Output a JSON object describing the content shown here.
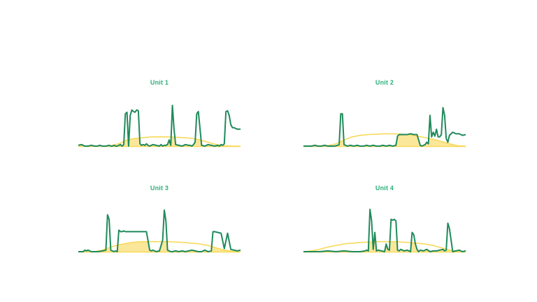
{
  "colors": {
    "actual": "#1f8a5b",
    "baseline": "#f8d95a",
    "baseline_fill": "#fbe79a",
    "title": "#2bb07a"
  },
  "chart_data": [
    {
      "type": "area",
      "title": "Unit 1",
      "xlim": [
        0,
        100
      ],
      "ylim": [
        0,
        60
      ],
      "series": [
        {
          "role": "actual",
          "x": [
            0,
            2,
            4,
            6,
            8,
            10,
            12,
            13,
            15,
            17,
            19,
            20,
            21,
            22,
            23,
            24,
            25,
            26,
            27,
            28,
            29,
            30,
            31,
            32,
            33,
            34,
            35,
            36,
            37,
            38,
            39,
            40,
            41,
            42,
            43,
            44,
            46,
            48,
            50,
            51,
            52,
            53,
            54,
            55,
            56,
            57,
            58,
            59,
            60,
            62,
            64,
            66,
            68,
            69,
            70,
            71,
            72,
            73,
            74,
            76,
            78,
            80,
            82,
            84,
            86,
            87,
            88,
            89,
            90,
            91,
            92,
            93,
            94,
            95,
            96,
            98,
            100
          ],
          "y": [
            1,
            2,
            0,
            0,
            1,
            0,
            0,
            1,
            0,
            0,
            1,
            0,
            0,
            1,
            0,
            0,
            1,
            2,
            0,
            2,
            42,
            44,
            0,
            40,
            47,
            45,
            44,
            47,
            46,
            3,
            1,
            2,
            1,
            3,
            1,
            0,
            2,
            1,
            0,
            2,
            0,
            1,
            1,
            2,
            8,
            1,
            53,
            22,
            2,
            1,
            0,
            2,
            1,
            1,
            0,
            2,
            5,
            42,
            45,
            1,
            0,
            2,
            1,
            0,
            1,
            0,
            2,
            1,
            3,
            45,
            46,
            40,
            28,
            24,
            24,
            22,
            22
          ]
        },
        {
          "role": "baseline",
          "x": [
            0,
            10,
            15,
            20,
            25,
            30,
            35,
            40,
            45,
            50,
            55,
            60,
            65,
            70,
            75,
            80,
            85,
            90,
            95,
            100
          ],
          "y": [
            0,
            0,
            0,
            0.5,
            3,
            8,
            10,
            11,
            12,
            12,
            12,
            11.5,
            11,
            10,
            8,
            5,
            2,
            0.5,
            0,
            0
          ]
        }
      ]
    },
    {
      "type": "area",
      "title": "Unit 2",
      "xlim": [
        0,
        100
      ],
      "ylim": [
        0,
        60
      ],
      "series": [
        {
          "role": "actual",
          "x": [
            0,
            5,
            7,
            9,
            11,
            13,
            15,
            17,
            19,
            21,
            22,
            23,
            24,
            25,
            26,
            27,
            29,
            31,
            33,
            35,
            37,
            39,
            41,
            43,
            45,
            47,
            49,
            51,
            53,
            55,
            57,
            58,
            59,
            60,
            62,
            64,
            66,
            68,
            70,
            72,
            73,
            74,
            75,
            76,
            77,
            78,
            79,
            80,
            81,
            82,
            83,
            84,
            85,
            86,
            87,
            88,
            89,
            90,
            91,
            92,
            94,
            96,
            98,
            100
          ],
          "y": [
            0,
            0,
            1,
            0,
            0,
            1,
            0,
            0,
            0,
            1,
            2,
            42,
            42,
            2,
            1,
            0,
            1,
            0,
            1,
            0,
            0,
            1,
            0,
            1,
            0,
            0,
            1,
            0,
            1,
            0,
            1,
            13,
            15,
            15,
            15,
            15,
            16,
            15,
            15,
            1,
            0,
            1,
            2,
            5,
            3,
            40,
            12,
            18,
            13,
            22,
            12,
            12,
            15,
            50,
            40,
            10,
            5,
            14,
            16,
            18,
            16,
            16,
            14,
            15
          ]
        },
        {
          "role": "baseline",
          "x": [
            0,
            10,
            15,
            20,
            25,
            30,
            35,
            40,
            45,
            50,
            55,
            60,
            65,
            70,
            75,
            80,
            85,
            90,
            95,
            100
          ],
          "y": [
            0,
            0,
            0.5,
            3,
            8,
            12,
            14,
            15,
            15.5,
            16,
            16,
            15.5,
            15,
            13,
            11,
            9,
            6,
            3,
            0.5,
            0
          ]
        }
      ]
    },
    {
      "type": "area",
      "title": "Unit 3",
      "xlim": [
        0,
        100
      ],
      "ylim": [
        0,
        60
      ],
      "series": [
        {
          "role": "actual",
          "x": [
            0,
            3,
            4,
            5,
            6,
            7,
            8,
            10,
            12,
            15,
            17,
            18,
            19,
            20,
            21,
            22,
            23,
            24,
            25,
            26,
            27,
            28,
            29,
            30,
            32,
            34,
            36,
            38,
            40,
            42,
            44,
            45,
            46,
            47,
            48,
            50,
            52,
            53,
            54,
            55,
            56,
            57,
            58,
            60,
            62,
            64,
            66,
            68,
            70,
            72,
            74,
            76,
            77,
            78,
            80,
            82,
            83,
            84,
            86,
            88,
            90,
            92,
            94,
            96,
            98,
            100
          ],
          "y": [
            0,
            0,
            2,
            1,
            2,
            1,
            0,
            0,
            0,
            1,
            2,
            48,
            42,
            2,
            1,
            0,
            1,
            0,
            28,
            26,
            26,
            27,
            26,
            26,
            26,
            26,
            26,
            26,
            26,
            26,
            2,
            1,
            2,
            1,
            0,
            1,
            15,
            54,
            40,
            2,
            1,
            0,
            0,
            1,
            0,
            1,
            0,
            1,
            2,
            1,
            0,
            0,
            1,
            2,
            0,
            1,
            26,
            26,
            25,
            24,
            4,
            24,
            3,
            2,
            1,
            2
          ]
        },
        {
          "role": "baseline",
          "x": [
            0,
            10,
            15,
            20,
            25,
            30,
            35,
            40,
            45,
            50,
            55,
            60,
            65,
            70,
            75,
            80,
            85,
            90,
            95,
            100
          ],
          "y": [
            0,
            0,
            2,
            6,
            9,
            11,
            12.5,
            13,
            13,
            13,
            13,
            12.5,
            12,
            11,
            10,
            8,
            5,
            2,
            0.5,
            0
          ]
        }
      ]
    },
    {
      "type": "area",
      "title": "Unit 4",
      "xlim": [
        0,
        100
      ],
      "ylim": [
        0,
        60
      ],
      "series": [
        {
          "role": "actual",
          "x": [
            0,
            5,
            10,
            15,
            20,
            25,
            30,
            35,
            38,
            39,
            40,
            41,
            42,
            43,
            44,
            45,
            46,
            48,
            50,
            51,
            52,
            53,
            54,
            55,
            56,
            57,
            58,
            59,
            60,
            62,
            64,
            66,
            67,
            68,
            69,
            70,
            71,
            72,
            74,
            76,
            78,
            80,
            82,
            84,
            86,
            87,
            88,
            89,
            90,
            92,
            94,
            96,
            98,
            100
          ],
          "y": [
            0,
            0,
            0,
            1,
            0,
            1,
            0,
            0,
            1,
            2,
            1,
            55,
            40,
            3,
            25,
            1,
            2,
            1,
            0,
            10,
            3,
            2,
            42,
            41,
            42,
            40,
            2,
            1,
            3,
            1,
            2,
            0,
            25,
            22,
            10,
            3,
            0,
            2,
            1,
            3,
            0,
            1,
            1,
            2,
            3,
            1,
            2,
            37,
            30,
            0,
            1,
            2,
            0,
            1
          ]
        },
        {
          "role": "baseline",
          "x": [
            0,
            5,
            10,
            15,
            20,
            25,
            30,
            35,
            40,
            45,
            50,
            55,
            60,
            65,
            70,
            75,
            80,
            85,
            90,
            95,
            100
          ],
          "y": [
            0,
            1,
            3,
            6,
            8,
            10,
            11,
            12,
            12.5,
            13,
            13,
            13,
            12.5,
            12,
            11,
            10,
            8,
            5,
            2,
            0.5,
            0
          ]
        }
      ]
    }
  ]
}
